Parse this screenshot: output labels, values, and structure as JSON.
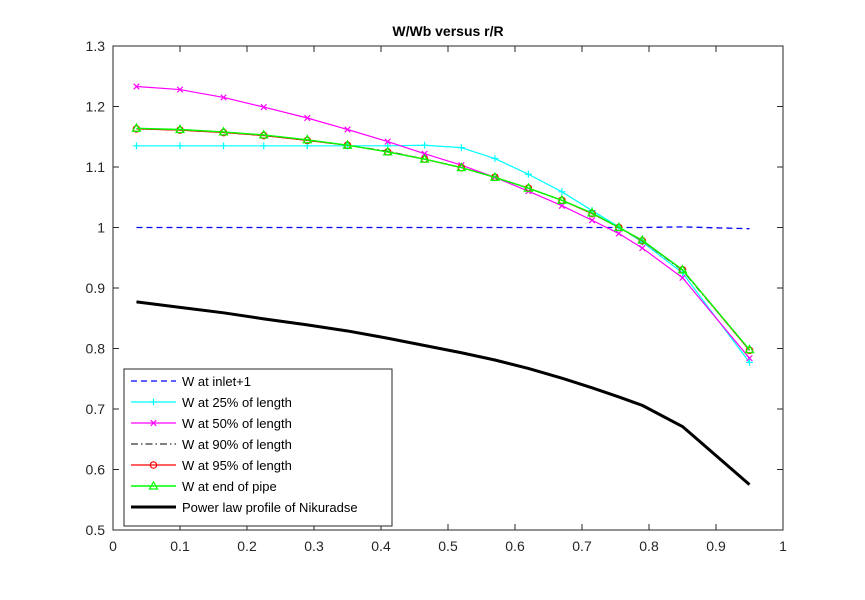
{
  "chart_data": {
    "type": "line",
    "title": "W/Wb versus r/R",
    "xlabel": "",
    "ylabel": "",
    "xlim": [
      0,
      1
    ],
    "ylim": [
      0.5,
      1.3
    ],
    "xticks": [
      0,
      0.1,
      0.2,
      0.3,
      0.4,
      0.5,
      0.6,
      0.7,
      0.8,
      0.9,
      1
    ],
    "yticks": [
      0.5,
      0.6,
      0.7,
      0.8,
      0.9,
      1,
      1.1,
      1.2,
      1.3
    ],
    "xtick_labels": [
      "0",
      "0.1",
      "0.2",
      "0.3",
      "0.4",
      "0.5",
      "0.6",
      "0.7",
      "0.8",
      "0.9",
      "1"
    ],
    "ytick_labels": [
      "0.5",
      "0.6",
      "0.7",
      "0.8",
      "0.9",
      "1",
      "1.1",
      "1.2",
      "1.3"
    ],
    "grid": false,
    "legend_position": "bottom-left",
    "series": [
      {
        "name": "W at inlet+1",
        "color": "#0000ff",
        "style": "dashed",
        "marker": "none",
        "width": 1.3,
        "x": [
          0.035,
          0.1,
          0.16,
          0.22,
          0.28,
          0.35,
          0.41,
          0.47,
          0.52,
          0.57,
          0.62,
          0.67,
          0.71,
          0.755,
          0.79,
          0.85,
          0.95
        ],
        "y": [
          1.0,
          1.0,
          1.0,
          1.0,
          1.0,
          1.0,
          1.0,
          1.0,
          1.0,
          1.0,
          1.0,
          1.0,
          1.0,
          1.0,
          1.0,
          1.001,
          0.998
        ]
      },
      {
        "name": "W at 25% of length",
        "color": "#00ffff",
        "style": "solid",
        "marker": "plus",
        "width": 1.2,
        "x": [
          0.035,
          0.1,
          0.165,
          0.225,
          0.29,
          0.35,
          0.41,
          0.465,
          0.52,
          0.57,
          0.62,
          0.67,
          0.715,
          0.755,
          0.79,
          0.85,
          0.95
        ],
        "y": [
          1.135,
          1.135,
          1.135,
          1.135,
          1.135,
          1.135,
          1.135,
          1.136,
          1.132,
          1.114,
          1.088,
          1.059,
          1.028,
          1.001,
          0.976,
          0.925,
          0.777
        ]
      },
      {
        "name": "W at 50% of length",
        "color": "#ff00ff",
        "style": "solid",
        "marker": "x",
        "width": 1.2,
        "x": [
          0.035,
          0.1,
          0.165,
          0.225,
          0.29,
          0.35,
          0.41,
          0.465,
          0.52,
          0.57,
          0.62,
          0.67,
          0.715,
          0.755,
          0.79,
          0.85,
          0.95
        ],
        "y": [
          1.233,
          1.228,
          1.215,
          1.199,
          1.181,
          1.162,
          1.142,
          1.122,
          1.103,
          1.083,
          1.06,
          1.036,
          1.012,
          0.99,
          0.966,
          0.917,
          0.784
        ]
      },
      {
        "name": "W at 90% of length",
        "color": "#000000",
        "style": "dashdot",
        "marker": "none",
        "width": 1.1,
        "x": [
          0.035,
          0.1,
          0.165,
          0.225,
          0.29,
          0.35,
          0.41,
          0.465,
          0.52,
          0.57,
          0.62,
          0.67,
          0.715,
          0.755,
          0.79,
          0.85,
          0.95
        ],
        "y": [
          1.163,
          1.161,
          1.157,
          1.152,
          1.144,
          1.136,
          1.126,
          1.113,
          1.099,
          1.083,
          1.065,
          1.045,
          1.023,
          1.0,
          0.978,
          0.929,
          0.797
        ]
      },
      {
        "name": "W at 95% of length",
        "color": "#ff0000",
        "style": "solid",
        "marker": "circle",
        "width": 1.2,
        "x": [
          0.035,
          0.1,
          0.165,
          0.225,
          0.29,
          0.35,
          0.41,
          0.465,
          0.52,
          0.57,
          0.62,
          0.67,
          0.715,
          0.755,
          0.79,
          0.85,
          0.95
        ],
        "y": [
          1.163,
          1.161,
          1.157,
          1.152,
          1.144,
          1.136,
          1.125,
          1.113,
          1.099,
          1.083,
          1.065,
          1.045,
          1.023,
          1.0,
          0.978,
          0.93,
          0.797
        ]
      },
      {
        "name": "W at end of pipe",
        "color": "#00ff00",
        "style": "solid",
        "marker": "triangle",
        "width": 1.4,
        "x": [
          0.035,
          0.1,
          0.165,
          0.225,
          0.29,
          0.35,
          0.41,
          0.465,
          0.52,
          0.57,
          0.62,
          0.67,
          0.715,
          0.755,
          0.79,
          0.85,
          0.95
        ],
        "y": [
          1.164,
          1.162,
          1.158,
          1.153,
          1.145,
          1.136,
          1.125,
          1.113,
          1.099,
          1.083,
          1.065,
          1.045,
          1.024,
          1.0,
          0.979,
          0.93,
          0.798
        ]
      },
      {
        "name": "Power law profile of Nikuradse",
        "color": "#000000",
        "style": "solid",
        "marker": "none",
        "width": 3,
        "x": [
          0.035,
          0.1,
          0.165,
          0.225,
          0.29,
          0.35,
          0.41,
          0.465,
          0.52,
          0.57,
          0.62,
          0.67,
          0.715,
          0.755,
          0.79,
          0.85,
          0.95
        ],
        "y": [
          0.877,
          0.868,
          0.859,
          0.849,
          0.839,
          0.829,
          0.817,
          0.805,
          0.793,
          0.781,
          0.767,
          0.751,
          0.735,
          0.72,
          0.706,
          0.671,
          0.575
        ]
      }
    ]
  }
}
